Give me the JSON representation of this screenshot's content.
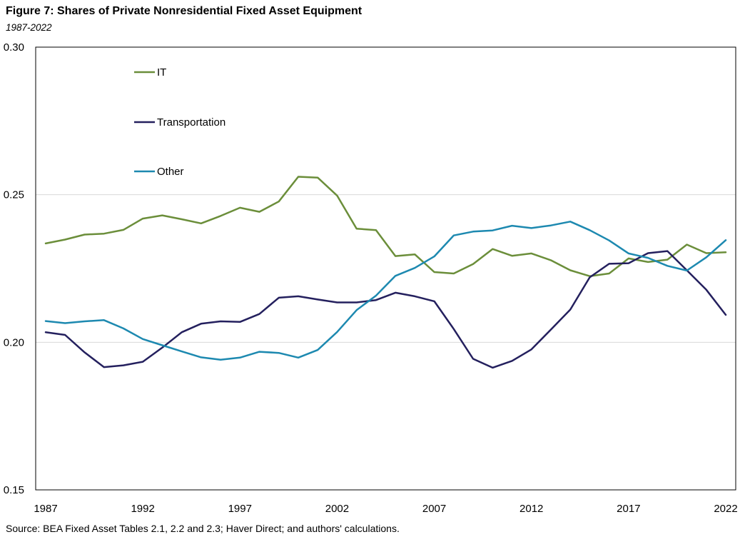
{
  "chart_data": {
    "type": "line",
    "title": "Figure 7: Shares of Private Nonresidential Fixed Asset Equipment",
    "subtitle": "1987-2022",
    "source": "Source: BEA Fixed Asset Tables 2.1, 2.2 and 2.3; Haver Direct; and authors' calculations.",
    "xlabel": "",
    "ylabel": "",
    "xlim": [
      1987,
      2022
    ],
    "ylim": [
      0.15,
      0.3
    ],
    "x_ticks": [
      "1987",
      "1992",
      "1997",
      "2002",
      "2007",
      "2012",
      "2017",
      "2022"
    ],
    "y_ticks": [
      "0.15",
      "0.20",
      "0.25",
      "0.30"
    ],
    "gridlines": [
      0.25,
      0.2
    ],
    "x": [
      1987,
      1988,
      1989,
      1990,
      1991,
      1992,
      1993,
      1994,
      1995,
      1996,
      1997,
      1998,
      1999,
      2000,
      2001,
      2002,
      2003,
      2004,
      2005,
      2006,
      2007,
      2008,
      2009,
      2010,
      2011,
      2012,
      2013,
      2014,
      2015,
      2016,
      2017,
      2018,
      2019,
      2020,
      2021,
      2022
    ],
    "series": [
      {
        "name": "IT",
        "color": "#6B8E3A",
        "values": [
          0.2335,
          0.2348,
          0.2365,
          0.2368,
          0.2381,
          0.2419,
          0.243,
          0.2417,
          0.2403,
          0.2428,
          0.2456,
          0.2442,
          0.2477,
          0.2561,
          0.2558,
          0.2497,
          0.2385,
          0.238,
          0.2292,
          0.2298,
          0.2238,
          0.2233,
          0.2265,
          0.2316,
          0.2293,
          0.2301,
          0.2278,
          0.2244,
          0.2224,
          0.2233,
          0.2284,
          0.2272,
          0.228,
          0.2331,
          0.2302,
          0.2305
        ]
      },
      {
        "name": "Transportation",
        "color": "#24205E",
        "values": [
          0.2034,
          0.2025,
          0.1966,
          0.1916,
          0.1922,
          0.1934,
          0.1982,
          0.2034,
          0.2063,
          0.2071,
          0.2069,
          0.2096,
          0.2151,
          0.2156,
          0.2145,
          0.2135,
          0.2135,
          0.2143,
          0.2168,
          0.2156,
          0.2139,
          0.2045,
          0.1944,
          0.1914,
          0.1937,
          0.1976,
          0.2043,
          0.2111,
          0.222,
          0.2266,
          0.2268,
          0.2302,
          0.2309,
          0.2244,
          0.2178,
          0.2093
        ]
      },
      {
        "name": "Other",
        "color": "#1D89B0",
        "values": [
          0.2072,
          0.2065,
          0.2071,
          0.2075,
          0.2047,
          0.2011,
          0.199,
          0.1969,
          0.1949,
          0.1941,
          0.1948,
          0.1968,
          0.1964,
          0.1948,
          0.1974,
          0.2035,
          0.2109,
          0.2158,
          0.2225,
          0.2252,
          0.2291,
          0.2362,
          0.2375,
          0.2379,
          0.2395,
          0.2387,
          0.2396,
          0.2409,
          0.238,
          0.2345,
          0.2301,
          0.2286,
          0.2259,
          0.2243,
          0.2288,
          0.2346
        ]
      }
    ]
  }
}
